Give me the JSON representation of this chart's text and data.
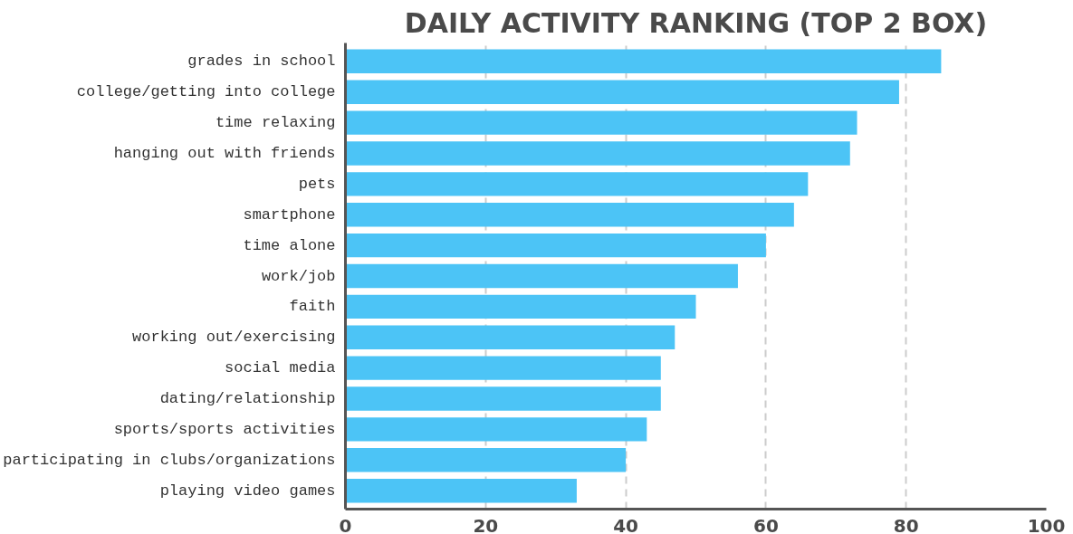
{
  "chart_data": {
    "type": "bar",
    "orientation": "horizontal",
    "title": "DAILY ACTIVITY RANKING (TOP 2 BOX)",
    "categories": [
      "grades in school",
      "college/getting into college",
      "time relaxing",
      "hanging out with friends",
      "pets",
      "smartphone",
      "time alone",
      "work/job",
      "faith",
      "working out/exercising",
      "social media",
      "dating/relationship",
      "sports/sports activities",
      "participating in clubs/organizations",
      "playing video games"
    ],
    "values": [
      85,
      79,
      73,
      72,
      66,
      64,
      60,
      56,
      50,
      47,
      45,
      45,
      43,
      40,
      33
    ],
    "color": "#4cc4f6",
    "xlim": [
      0,
      100
    ],
    "xticks": [
      0,
      20,
      40,
      60,
      80,
      100
    ],
    "grid": "x"
  }
}
